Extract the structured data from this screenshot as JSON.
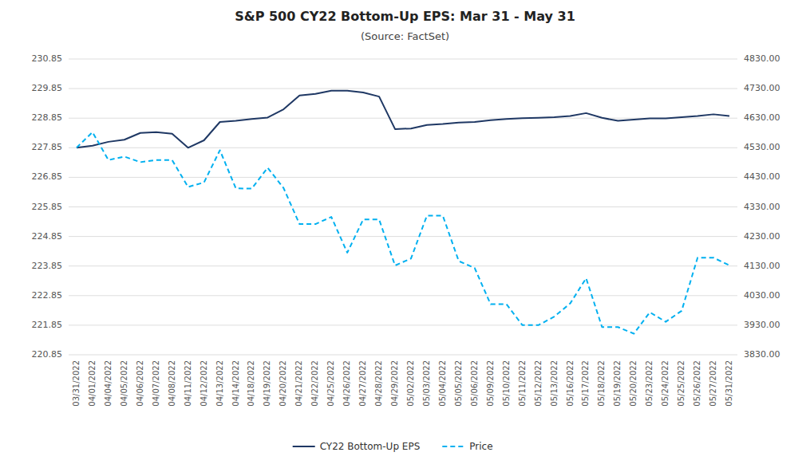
{
  "chart_data": {
    "type": "line",
    "title": "S&P 500 CY22 Bottom-Up EPS: Mar 31 - May 31",
    "subtitle": "(Source: FactSet)",
    "categories": [
      "03/31/2022",
      "04/01/2022",
      "04/04/2022",
      "04/05/2022",
      "04/06/2022",
      "04/07/2022",
      "04/08/2022",
      "04/11/2022",
      "04/12/2022",
      "04/13/2022",
      "04/14/2022",
      "04/18/2022",
      "04/19/2022",
      "04/20/2022",
      "04/21/2022",
      "04/22/2022",
      "04/25/2022",
      "04/26/2022",
      "04/27/2022",
      "04/28/2022",
      "04/29/2022",
      "05/02/2022",
      "05/03/2022",
      "05/04/2022",
      "05/05/2022",
      "05/06/2022",
      "05/09/2022",
      "05/10/2022",
      "05/11/2022",
      "05/12/2022",
      "05/13/2022",
      "05/16/2022",
      "05/17/2022",
      "05/18/2022",
      "05/19/2022",
      "05/20/2022",
      "05/23/2022",
      "05/24/2022",
      "05/25/2022",
      "05/26/2022",
      "05/27/2022",
      "05/31/2022"
    ],
    "series": [
      {
        "name": "CY22 Bottom-Up EPS",
        "color": "#1f3864",
        "line_style": "solid",
        "values": [
          227.85,
          227.92,
          228.05,
          228.12,
          228.35,
          228.38,
          228.32,
          227.85,
          228.1,
          228.72,
          228.76,
          228.82,
          228.87,
          229.15,
          229.62,
          229.67,
          229.78,
          229.78,
          229.72,
          229.58,
          228.48,
          228.5,
          228.62,
          228.65,
          228.7,
          228.72,
          228.78,
          228.82,
          228.85,
          228.86,
          228.88,
          228.92,
          229.02,
          228.86,
          228.76,
          228.8,
          228.84,
          228.84,
          228.88,
          228.92,
          228.98,
          228.92
        ]
      },
      {
        "name": "Price",
        "color": "#00b0f0",
        "line_style": "dashed",
        "axis": "y2",
        "values": [
          4530.41,
          4582.64,
          4488.28,
          4500.21,
          4481.15,
          4488.28,
          4488.28,
          4397.45,
          4412.53,
          4521.54,
          4392.59,
          4391.69,
          4462.21,
          4393.66,
          4271.78,
          4271.78,
          4296.12,
          4175.2,
          4287.5,
          4287.5,
          4131.93,
          4155.38,
          4300.17,
          4300.17,
          4146.87,
          4123.34,
          4001.05,
          4001.05,
          3930.08,
          3930.08,
          3958.99,
          4003.58,
          4088.85,
          3923.68,
          3923.68,
          3901.36,
          3973.75,
          3941.48,
          3978.73,
          4158.24,
          4158.24,
          4132.15
        ]
      }
    ],
    "ylim": [
      220.85,
      230.85
    ],
    "yticks": [
      220.85,
      221.85,
      222.85,
      223.85,
      224.85,
      225.85,
      226.85,
      227.85,
      228.85,
      229.85,
      230.85
    ],
    "y2lim": [
      3830.0,
      4830.0
    ],
    "y2ticks": [
      {
        "value": 3830,
        "label": "3830.00"
      },
      {
        "value": 3930,
        "label": "3930.00"
      },
      {
        "value": 4030,
        "label": "4030.00"
      },
      {
        "value": 4130,
        "label": "4130.00"
      },
      {
        "value": 4230,
        "label": "4230.00"
      },
      {
        "value": 4330,
        "label": "4330.00"
      },
      {
        "value": 4430,
        "label": "4430.00"
      },
      {
        "value": 4530,
        "label": "4530.00"
      },
      {
        "value": 4630,
        "label": "4630.00"
      },
      {
        "value": 4730,
        "label": "4730.00"
      },
      {
        "value": 4830,
        "label": "4830.00"
      }
    ],
    "grid": true,
    "legend": "bottom"
  }
}
